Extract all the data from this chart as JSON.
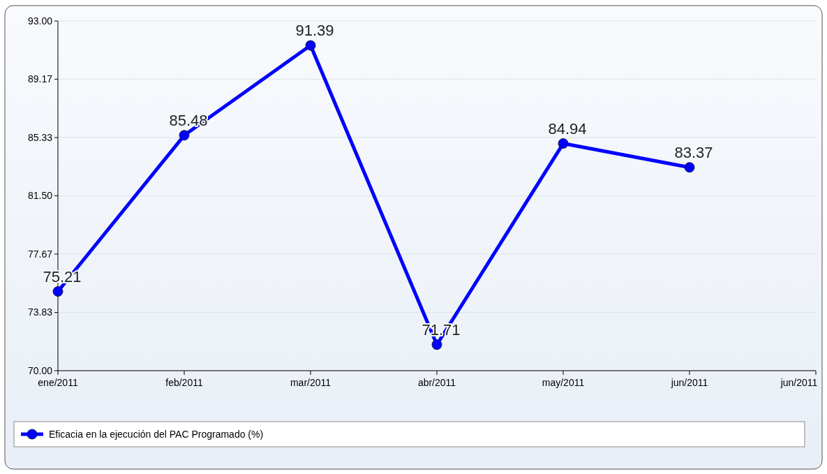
{
  "chart_data": {
    "type": "line",
    "categories": [
      "ene/2011",
      "feb/2011",
      "mar/2011",
      "abr/2011",
      "may/2011",
      "jun/2011",
      "jun/2011"
    ],
    "series": [
      {
        "name": "Eficacia en la ejecución del PAC Programado (%)",
        "color": "#0000ff",
        "values": [
          75.21,
          85.48,
          91.39,
          71.71,
          84.94,
          83.37,
          null
        ]
      }
    ],
    "ylim": [
      70,
      93
    ],
    "yticks": [
      {
        "value": 70,
        "label": "70.00"
      },
      73.83,
      77.67,
      {
        "value": 81.5,
        "label": "81.50"
      },
      85.33,
      89.17,
      {
        "value": 93,
        "label": "93.00"
      }
    ],
    "grid": "y",
    "legend": "bottom",
    "marker": "circle",
    "line_style": "solid",
    "data_labels": true
  }
}
